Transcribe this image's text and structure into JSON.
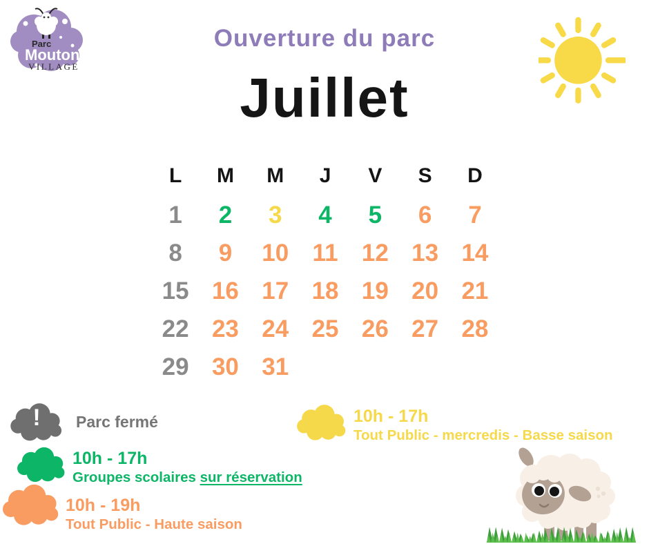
{
  "header": {
    "subtitle": "Ouverture du parc",
    "month": "Juillet"
  },
  "logo": {
    "line1": "Parc",
    "line2": "Mouton",
    "line3": "VILLAGE"
  },
  "calendar": {
    "day_headers": [
      "L",
      "M",
      "M",
      "J",
      "V",
      "S",
      "D"
    ],
    "weeks": [
      [
        {
          "day": "1",
          "status": "closed"
        },
        {
          "day": "2",
          "status": "school"
        },
        {
          "day": "3",
          "status": "low_season"
        },
        {
          "day": "4",
          "status": "school"
        },
        {
          "day": "5",
          "status": "school"
        },
        {
          "day": "6",
          "status": "high_season"
        },
        {
          "day": "7",
          "status": "high_season"
        }
      ],
      [
        {
          "day": "8",
          "status": "closed"
        },
        {
          "day": "9",
          "status": "high_season"
        },
        {
          "day": "10",
          "status": "high_season"
        },
        {
          "day": "11",
          "status": "high_season"
        },
        {
          "day": "12",
          "status": "high_season"
        },
        {
          "day": "13",
          "status": "high_season"
        },
        {
          "day": "14",
          "status": "high_season"
        }
      ],
      [
        {
          "day": "15",
          "status": "closed"
        },
        {
          "day": "16",
          "status": "high_season"
        },
        {
          "day": "17",
          "status": "high_season"
        },
        {
          "day": "18",
          "status": "high_season"
        },
        {
          "day": "19",
          "status": "high_season"
        },
        {
          "day": "20",
          "status": "high_season"
        },
        {
          "day": "21",
          "status": "high_season"
        }
      ],
      [
        {
          "day": "22",
          "status": "closed"
        },
        {
          "day": "23",
          "status": "high_season"
        },
        {
          "day": "24",
          "status": "high_season"
        },
        {
          "day": "25",
          "status": "high_season"
        },
        {
          "day": "26",
          "status": "high_season"
        },
        {
          "day": "27",
          "status": "high_season"
        },
        {
          "day": "28",
          "status": "high_season"
        }
      ],
      [
        {
          "day": "29",
          "status": "closed"
        },
        {
          "day": "30",
          "status": "high_season"
        },
        {
          "day": "31",
          "status": "high_season"
        }
      ]
    ]
  },
  "legend": {
    "closed": {
      "icon_glyph": "!",
      "label": "Parc fermé"
    },
    "school": {
      "hours": "10h - 17h",
      "label": "Groupes scolaires ",
      "label_link": "sur réservation"
    },
    "high_season": {
      "hours": "10h - 19h",
      "label": "Tout Public - Haute saison"
    },
    "low_season": {
      "hours": "10h - 17h",
      "label": "Tout Public - mercredis - Basse saison"
    }
  },
  "colors": {
    "closed": "#8A8A8A",
    "school": "#0DB667",
    "low_season": "#F6D94B",
    "high_season": "#F99C62",
    "closed_cloud": "#6F6F6F",
    "legend_gray": "#757575",
    "heading_purple": "#8E7CB9",
    "logo_purple": "#A18DC1",
    "sun_yellow": "#F8D948"
  }
}
